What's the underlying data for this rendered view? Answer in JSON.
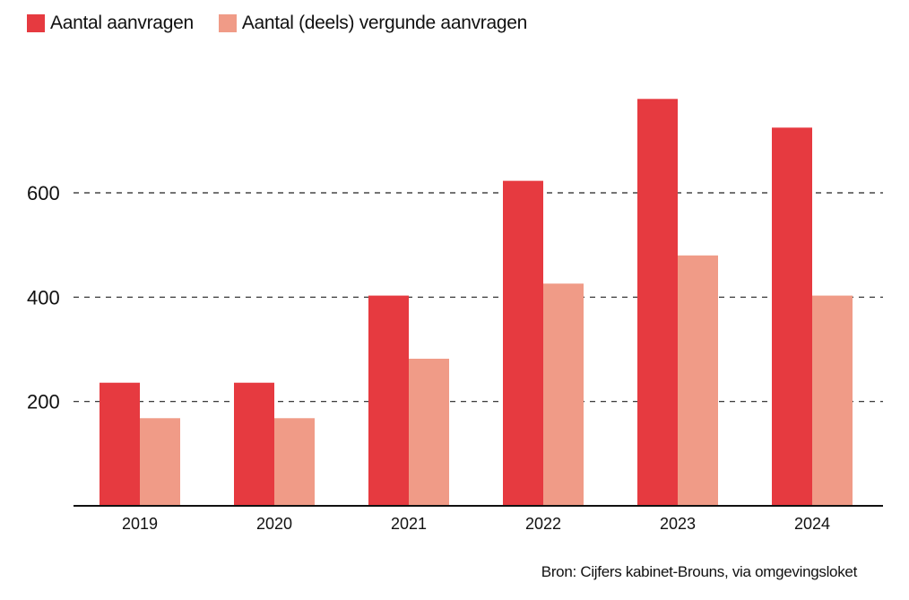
{
  "chart_data": {
    "type": "bar",
    "categories": [
      "2019",
      "2020",
      "2021",
      "2022",
      "2023",
      "2024"
    ],
    "series": [
      {
        "name": "Aantal aanvragen",
        "color": "#e63a40",
        "values": [
          236,
          236,
          403,
          623,
          780,
          725
        ]
      },
      {
        "name": "Aantal (deels) vergunde aanvragen",
        "color": "#f09b87",
        "values": [
          168,
          168,
          282,
          426,
          480,
          403
        ]
      }
    ],
    "yticks": [
      200,
      400,
      600
    ],
    "ylim": [
      0,
      800
    ],
    "grid": true,
    "legend": "top-left",
    "source": "Bron: Cijfers kabinet-Brouns, via omgevingsloket"
  }
}
